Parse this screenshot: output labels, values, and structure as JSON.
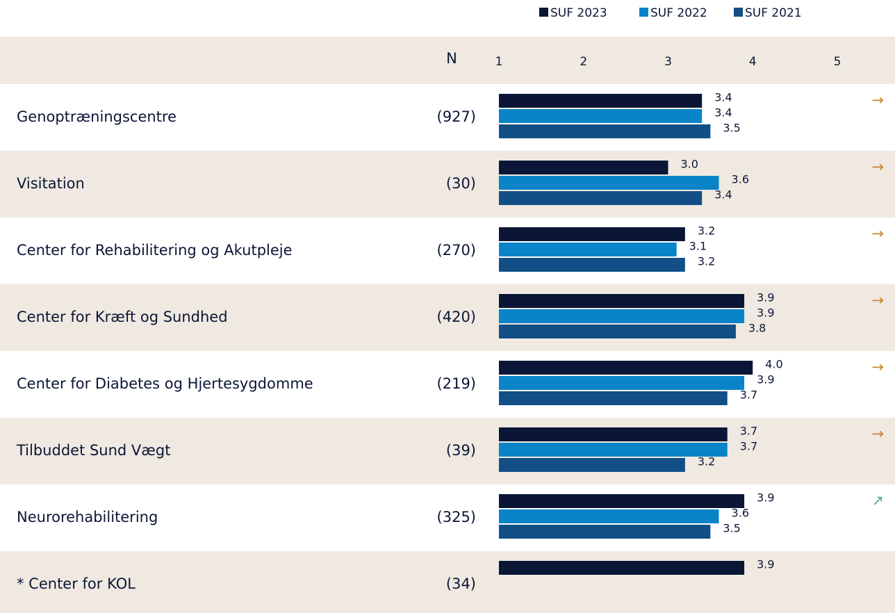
{
  "chart_data": {
    "type": "bar",
    "orientation": "horizontal",
    "n_header": "N",
    "categories": [
      "Genoptræningscentre",
      "Visitation",
      "Center for Rehabilitering og Akutpleje",
      "Center for Kræft og Sundhed",
      "Center for Diabetes og Hjertesygdomme",
      "Tilbuddet Sund Vægt",
      "Neurorehabilitering",
      "* Center for KOL"
    ],
    "n_labels": [
      "(927)",
      "(30)",
      "(270)",
      "(420)",
      "(219)",
      "(39)",
      "(325)",
      "(34)"
    ],
    "trends": [
      "→",
      "→",
      "→",
      "→",
      "→",
      "→",
      "↗",
      null
    ],
    "trend_colors": [
      "#c8862a",
      "#c8862a",
      "#c8862a",
      "#c8862a",
      "#c8862a",
      "#c8862a",
      "#5aaa8a",
      null
    ],
    "series": [
      {
        "name": "SUF 2023",
        "color": "#0b1636",
        "values": [
          3.4,
          3.0,
          3.2,
          3.9,
          4.0,
          3.7,
          3.9,
          3.9
        ],
        "value_labels": [
          "3.4",
          "3.0",
          "3.2",
          "3.9",
          "4.0",
          "3.7",
          "3.9",
          "3.9"
        ]
      },
      {
        "name": "SUF 2022",
        "color": "#0a84c8",
        "values": [
          3.4,
          3.6,
          3.1,
          3.9,
          3.9,
          3.7,
          3.6,
          null
        ],
        "value_labels": [
          "3.4",
          "3.6",
          "3.1",
          "3.9",
          "3.9",
          "3.7",
          "3.6",
          null
        ]
      },
      {
        "name": "SUF 2021",
        "color": "#114f86",
        "values": [
          3.5,
          3.4,
          3.2,
          3.8,
          3.7,
          3.2,
          3.5,
          null
        ],
        "value_labels": [
          "3.5",
          "3.4",
          "3.2",
          "3.8",
          "3.7",
          "3.2",
          "3.5",
          null
        ]
      }
    ],
    "xlim": [
      1,
      5
    ],
    "xticks": [
      1,
      2,
      3,
      4,
      5
    ],
    "grid": false
  }
}
